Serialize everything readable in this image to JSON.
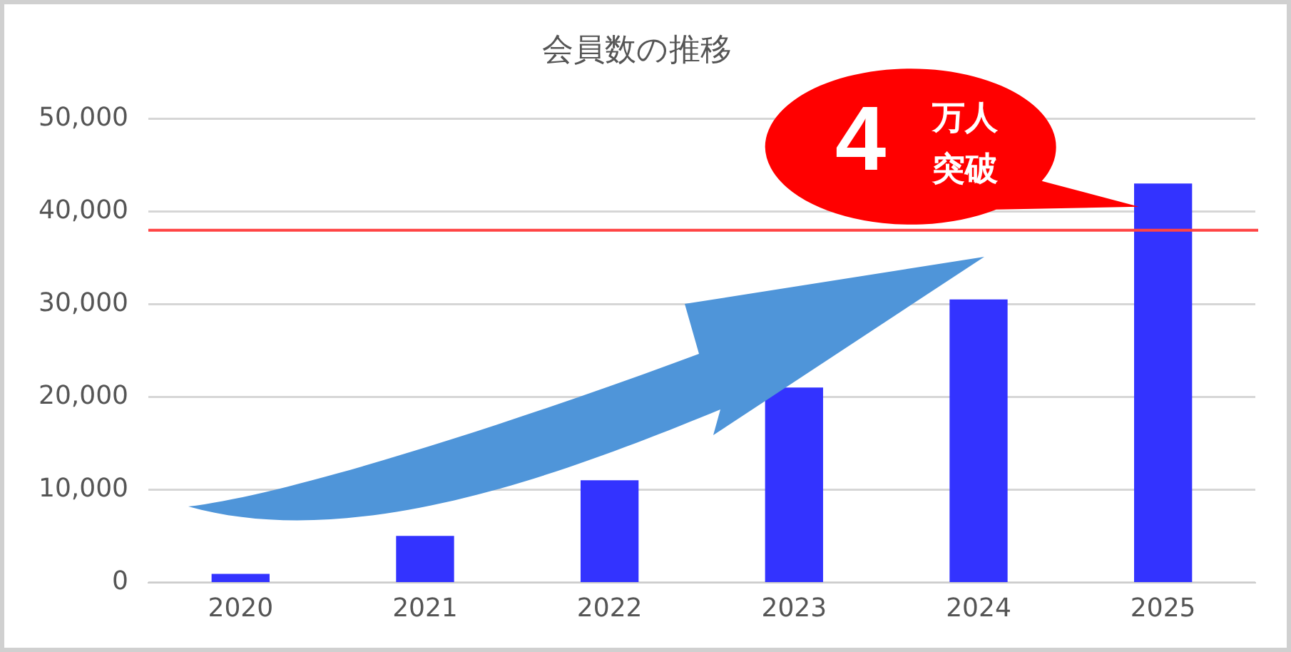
{
  "chart_data": {
    "type": "bar",
    "title": "会員数の推移",
    "categories": [
      "2020",
      "2021",
      "2022",
      "2023",
      "2024",
      "2025"
    ],
    "values": [
      900,
      5000,
      11000,
      21000,
      30500,
      43000
    ],
    "color": "#3333ff",
    "ylim": [
      0,
      50000
    ],
    "yticks": [
      {
        "value": 0,
        "label": "0"
      },
      {
        "value": 10000,
        "label": "10,000"
      },
      {
        "value": 20000,
        "label": "20,000"
      },
      {
        "value": 30000,
        "label": "30,000"
      },
      {
        "value": 40000,
        "label": "40,000"
      },
      {
        "value": 50000,
        "label": "50,000"
      }
    ],
    "grid": "y",
    "legend": false,
    "ref_lines": [
      {
        "axis": "y",
        "value": 38000,
        "color": "#ff4444"
      }
    ],
    "annotations": [
      {
        "text": "4万人突破",
        "x": "2025",
        "y": 43000
      }
    ]
  }
}
